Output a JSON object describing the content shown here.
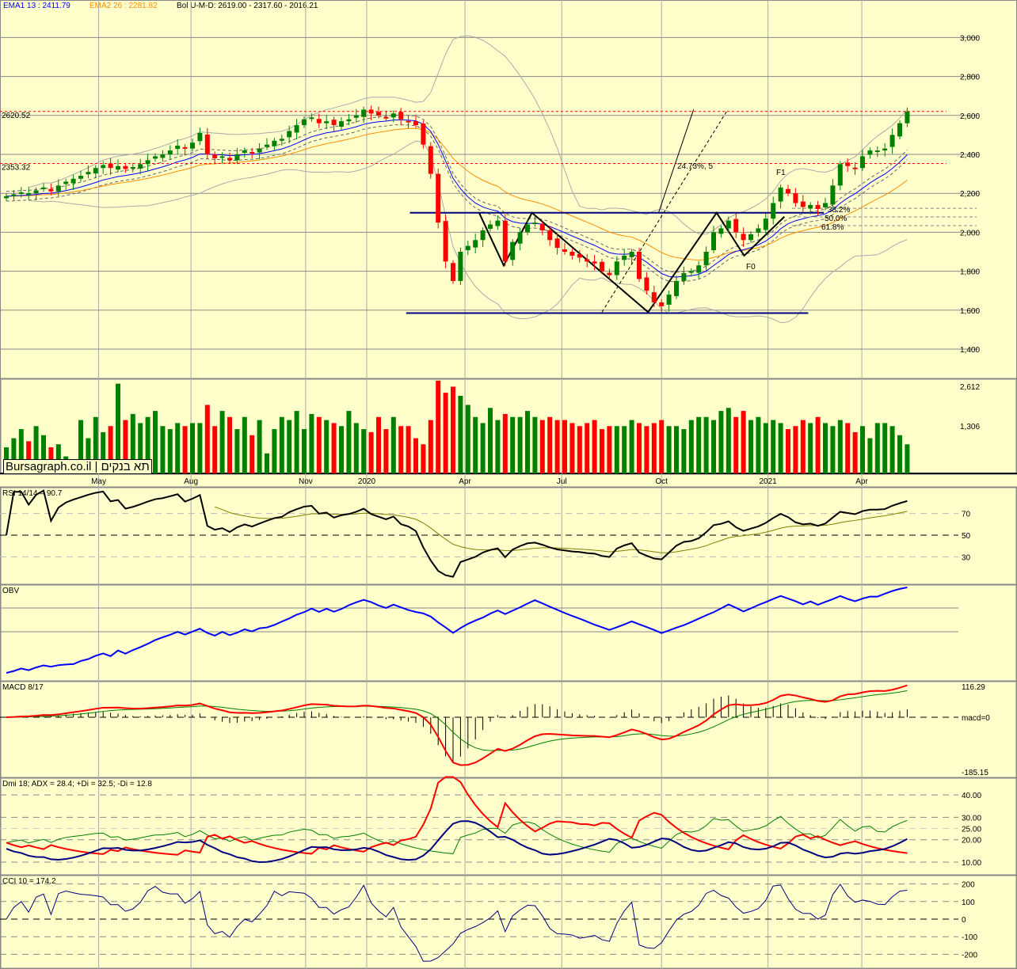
{
  "legend": {
    "ema1": "EMA1 13 : 2411.79",
    "ema1_color": "#0000ff",
    "ema2": "EMA2 26 : 2281.82",
    "ema2_color": "#ff8c00",
    "bol": "Bol U-M-D: 2619.00 - 2317.60 - 2016.21"
  },
  "brand": "Bursagraph.co.il | תא בנקים",
  "colors": {
    "up": "#008000",
    "down": "#ff0000",
    "bg": "#ffffcc"
  },
  "chart_data": {
    "type": "candlestick",
    "price_axis": {
      "ticks": [
        "3,000",
        "2,800",
        "2,600",
        "2,400",
        "2,200",
        "2,000",
        "1,800",
        "1,600",
        "1,400"
      ],
      "values": [
        3000,
        2800,
        2600,
        2400,
        2200,
        2000,
        1800,
        1600,
        1400
      ]
    },
    "x_labels": [
      {
        "label": "May",
        "week": 12.4
      },
      {
        "label": "Aug",
        "week": 24.8
      },
      {
        "label": "Nov",
        "week": 40.2
      },
      {
        "label": "2020",
        "week": 48.4
      },
      {
        "label": "Apr",
        "week": 61.6
      },
      {
        "label": "Jul",
        "week": 74.6
      },
      {
        "label": "Oct",
        "week": 88
      },
      {
        "label": "2021",
        "week": 102.3
      },
      {
        "label": "Apr",
        "week": 114.9
      }
    ],
    "closes": [
      2185,
      2195,
      2205,
      2200,
      2215,
      2230,
      2210,
      2240,
      2260,
      2275,
      2290,
      2310,
      2330,
      2345,
      2330,
      2340,
      2325,
      2335,
      2350,
      2370,
      2390,
      2400,
      2420,
      2445,
      2430,
      2460,
      2510,
      2400,
      2380,
      2390,
      2370,
      2400,
      2420,
      2410,
      2430,
      2450,
      2470,
      2480,
      2520,
      2550,
      2580,
      2590,
      2560,
      2570,
      2550,
      2570,
      2580,
      2600,
      2630,
      2610,
      2600,
      2590,
      2610,
      2580,
      2570,
      2550,
      2450,
      2300,
      2050,
      1850,
      1750,
      1900,
      1930,
      1960,
      2010,
      2040,
      2060,
      1850,
      1950,
      2000,
      2040,
      2050,
      2010,
      1960,
      1920,
      1900,
      1880,
      1870,
      1850,
      1840,
      1800,
      1780,
      1850,
      1880,
      1900,
      1760,
      1700,
      1640,
      1620,
      1680,
      1750,
      1790,
      1800,
      1830,
      1900,
      2000,
      2020,
      2060,
      2000,
      1960,
      1990,
      2020,
      2070,
      2150,
      2230,
      2200,
      2150,
      2130,
      2140,
      2120,
      2150,
      2240,
      2350,
      2340,
      2330,
      2390,
      2420,
      2420,
      2430,
      2500,
      2560,
      2620
    ],
    "volume": [
      600,
      900,
      1200,
      800,
      1300,
      1000,
      600,
      700,
      300,
      200,
      1500,
      900,
      1600,
      1100,
      1300,
      2700,
      1500,
      1700,
      1400,
      1600,
      1800,
      1300,
      1200,
      1400,
      1300,
      1400,
      1400,
      2000,
      1300,
      1800,
      1600,
      1200,
      1600,
      1000,
      1500,
      400,
      1200,
      1600,
      1500,
      1800,
      1200,
      1700,
      1600,
      1500,
      1400,
      1300,
      1800,
      1400,
      1200,
      1100,
      1600,
      1200,
      1600,
      1300,
      1300,
      900,
      700,
      1500,
      2800,
      2400,
      2600,
      2300,
      2000,
      1600,
      1400,
      1900,
      1500,
      1700,
      1600,
      1600,
      1800,
      1600,
      1500,
      1600,
      1500,
      1500,
      1400,
      1300,
      1400,
      1500,
      1200,
      1300,
      1300,
      1300,
      1500,
      1400,
      1300,
      1400,
      1500,
      1300,
      1300,
      1200,
      1500,
      1600,
      1600,
      1500,
      1800,
      1900,
      1600,
      1800,
      1500,
      1600,
      1400,
      1500,
      1400,
      1200,
      1300,
      1500,
      1400,
      1600,
      1400,
      1300,
      1500,
      1400,
      1100,
      1300,
      900,
      1400,
      1400,
      1300,
      1000,
      700
    ],
    "volume_axis": {
      "ticks": [
        "2,612",
        "1,306"
      ],
      "values": [
        2612,
        1306
      ]
    },
    "annotations": {
      "resistance_high_label": "2620.52",
      "resistance_high": 2620.52,
      "support_low_label": "2353.32",
      "support_low": 2353.32,
      "neckline": {
        "price": 2100,
        "from": 54.2,
        "to": 109.8
      },
      "base_line": {
        "price": 1585,
        "from": 53.7,
        "to": 107.7
      },
      "zigzag": [
        [
          63.5,
          2100
        ],
        [
          66.8,
          1830
        ],
        [
          70.6,
          2100
        ],
        [
          86.2,
          1590
        ],
        [
          95.4,
          2100
        ],
        [
          99.1,
          1880
        ],
        [
          104.5,
          2080
        ]
      ],
      "projection_label": "24.73%, 5",
      "f1": "F1",
      "f0": "F0",
      "fib": [
        {
          "label": "38.2%",
          "price": 2123
        },
        {
          "label": "50.0%",
          "price": 2079
        },
        {
          "label": "61.8%",
          "price": 2034
        }
      ]
    },
    "panels": {
      "rsi": {
        "label": "RSI 14/14 = 90.7",
        "ticks": [
          "70",
          "50",
          "30"
        ]
      },
      "obv": {
        "label": "OBV"
      },
      "macd": {
        "label": "MACD 8/17",
        "top": "116.29",
        "zero": "macd=0",
        "bottom": "-185.15"
      },
      "dmi": {
        "label": "Dmi 18; ADX = 28.4; +Di = 32.5; -Di = 12.8",
        "ticks": [
          "40.00",
          "30.00",
          "25.00",
          "20.00",
          "10.00"
        ]
      },
      "cci": {
        "label": "CCI 10 = 174.2",
        "ticks": [
          "200",
          "100",
          "0",
          "-100",
          "-200"
        ]
      }
    }
  }
}
